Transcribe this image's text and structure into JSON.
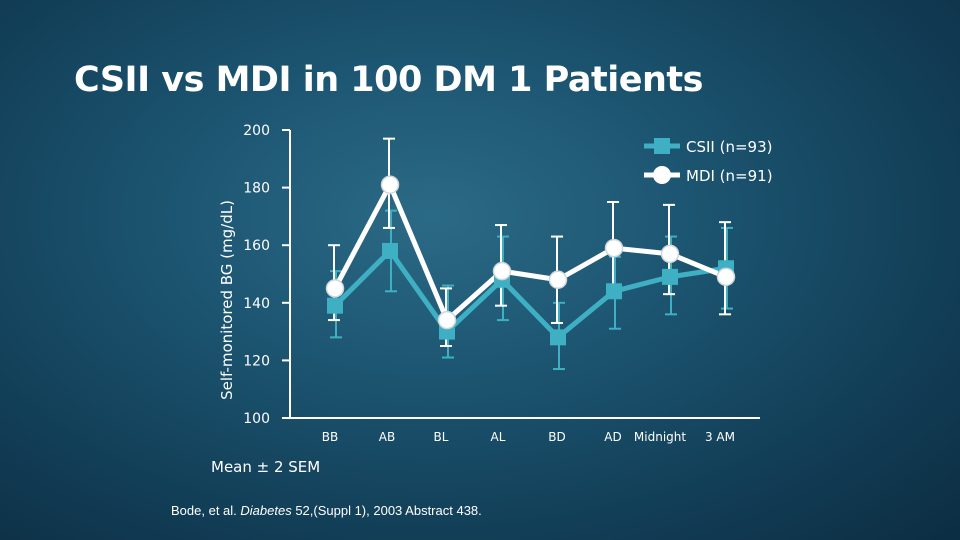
{
  "slide": {
    "title": "CSII vs MDI in 100 DM 1 Patients",
    "note": "Mean ± 2 SEM",
    "citation": {
      "prefix": "Bode, et al. ",
      "journal": "Diabetes",
      "suffix": " 52,(Suppl 1), 2003 Abstract 438."
    }
  },
  "colors": {
    "csii": "#3fb0c3",
    "mdi": "#ffffff",
    "axis": "#ffffff"
  },
  "chart_data": {
    "type": "line",
    "title": "CSII vs MDI in 100 DM 1 Patients",
    "xlabel": "",
    "ylabel": "Self-monitored BG (mg/dL)",
    "ylim": [
      100,
      200
    ],
    "yticks": [
      200,
      180,
      160,
      140,
      120,
      100
    ],
    "categories": [
      "BB",
      "AB",
      "BL",
      "AL",
      "BD",
      "AD",
      "Midnight",
      "3 AM"
    ],
    "grid": false,
    "legend_position": "top-right",
    "series": [
      {
        "name": "CSII (n=93)",
        "marker": "square",
        "values": [
          139,
          158,
          130,
          148,
          128,
          144,
          149,
          152
        ],
        "error_low": [
          128,
          144,
          121,
          134,
          117,
          131,
          136,
          138
        ],
        "error_high": [
          151,
          172,
          146,
          163,
          140,
          156,
          163,
          166
        ]
      },
      {
        "name": "MDI (n=91)",
        "marker": "circle",
        "values": [
          145,
          181,
          134,
          151,
          148,
          159,
          157,
          149
        ],
        "error_low": [
          134,
          166,
          125,
          139,
          133,
          145,
          143,
          136
        ],
        "error_high": [
          160,
          197,
          145,
          167,
          163,
          175,
          174,
          168
        ]
      }
    ]
  }
}
